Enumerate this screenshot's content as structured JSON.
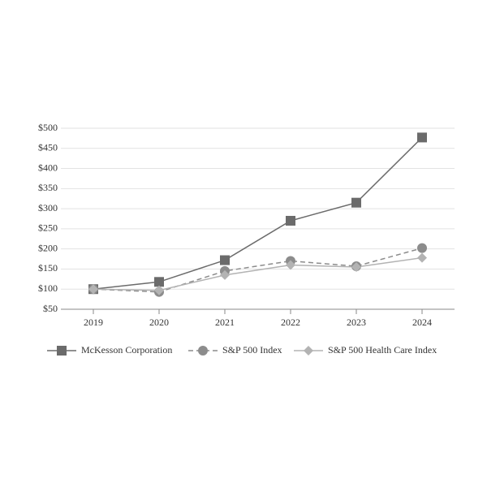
{
  "chart_data": {
    "type": "line",
    "categories": [
      "2019",
      "2020",
      "2021",
      "2022",
      "2023",
      "2024"
    ],
    "series": [
      {
        "name": "McKesson Corporation",
        "color": "#6b6b6b",
        "marker": "square",
        "dashed": false,
        "values": [
          100,
          118,
          172,
          270,
          315,
          477
        ]
      },
      {
        "name": "S&P 500 Index",
        "color": "#8c8c8c",
        "marker": "circle",
        "dashed": true,
        "values": [
          100,
          93,
          145,
          170,
          157,
          202
        ]
      },
      {
        "name": "S&P 500 Health Care Index",
        "color": "#b3b3b3",
        "marker": "diamond",
        "dashed": false,
        "values": [
          100,
          97,
          135,
          160,
          155,
          178
        ]
      }
    ],
    "ylim": [
      50,
      500
    ],
    "yticks": [
      {
        "value": 50,
        "label": "$50"
      },
      {
        "value": 100,
        "label": "$100"
      },
      {
        "value": 150,
        "label": "$150"
      },
      {
        "value": 200,
        "label": "$200"
      },
      {
        "value": 250,
        "label": "$250"
      },
      {
        "value": 300,
        "label": "$300"
      },
      {
        "value": 350,
        "label": "$350"
      },
      {
        "value": 400,
        "label": "$400"
      },
      {
        "value": 450,
        "label": "$450"
      },
      {
        "value": 500,
        "label": "$500"
      }
    ],
    "grid": true
  }
}
